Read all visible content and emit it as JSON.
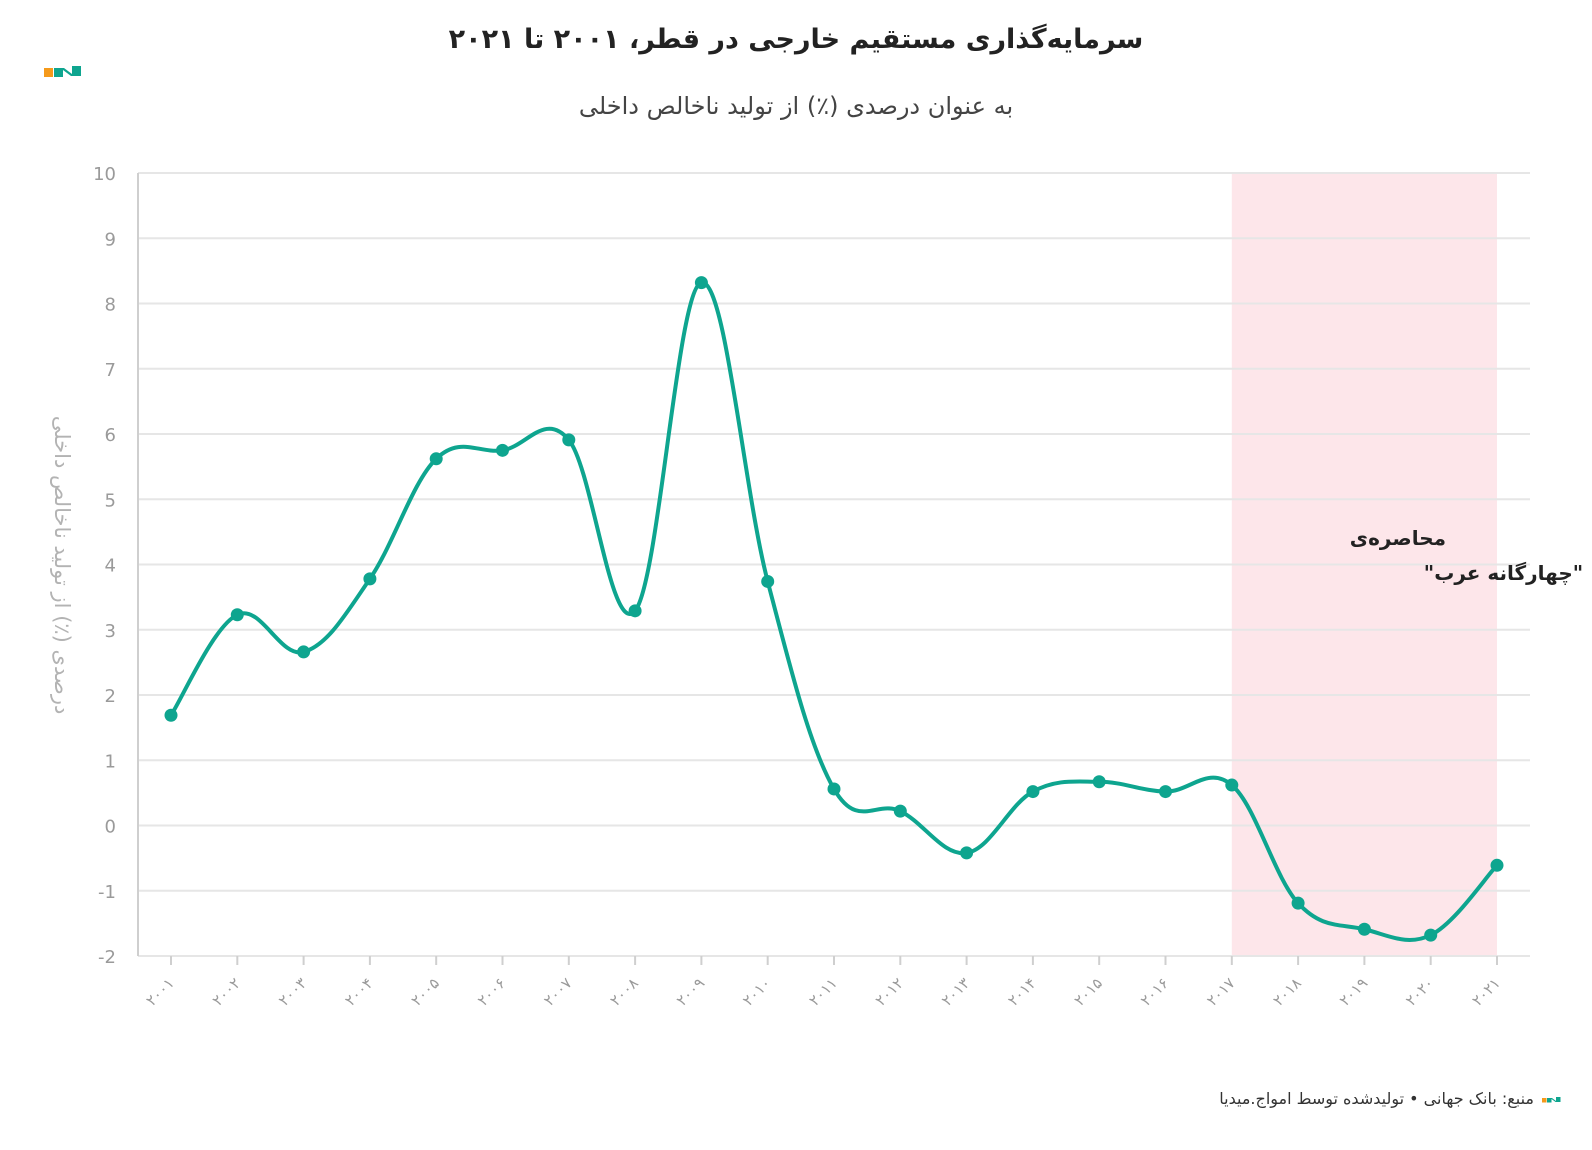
{
  "header": {
    "title": "سرمایه‌گذاری مستقیم خارجی در قطر، ۲۰۰۱ تا ۲۰۲۱",
    "subtitle": "به عنوان درصدی (٪) از تولید ناخالص داخلی"
  },
  "footer": {
    "source": "منبع: بانک جهانی • تولیدشده توسط امواج.میدیا"
  },
  "colors": {
    "line": "#0ea58f",
    "band": "#fde6ea",
    "grid": "#e6e6e6",
    "logo_orange": "#f59a1b",
    "logo_teal": "#0ea58f"
  },
  "chart_data": {
    "type": "line",
    "title": "سرمایه‌گذاری مستقیم خارجی در قطر، ۲۰۰۱ تا ۲۰۲۱",
    "subtitle": "به عنوان درصدی (٪) از تولید ناخالص داخلی",
    "ylabel": "درصدی (٪) از تولید ناخالص داخلی",
    "xlabel": "",
    "ylim": [
      -2,
      10
    ],
    "yticks": [
      -2,
      -1,
      0,
      1,
      2,
      3,
      4,
      5,
      6,
      7,
      8,
      9,
      10
    ],
    "grid": true,
    "x": [
      "۲۰۰۱",
      "۲۰۰۲",
      "۲۰۰۳",
      "۲۰۰۴",
      "۲۰۰۵",
      "۲۰۰۶",
      "۲۰۰۷",
      "۲۰۰۸",
      "۲۰۰۹",
      "۲۰۱۰",
      "۲۰۱۱",
      "۲۰۱۲",
      "۲۰۱۳",
      "۲۰۱۴",
      "۲۰۱۵",
      "۲۰۱۶",
      "۲۰۱۷",
      "۲۰۱۸",
      "۲۰۱۹",
      "۲۰۲۰",
      "۲۰۲۱"
    ],
    "series": [
      {
        "values": [
          1.69,
          3.23,
          2.66,
          3.78,
          5.62,
          5.75,
          5.91,
          3.29,
          8.32,
          3.74,
          0.56,
          0.22,
          -0.42,
          0.52,
          0.67,
          0.52,
          0.62,
          -1.19,
          -1.59,
          -1.68,
          -0.61
        ]
      }
    ],
    "annotation": {
      "line1": "محاصره‌ی",
      "line2": "\"چهارگانه عرب\"",
      "band_from_index": 16,
      "band_to_index": 20
    }
  }
}
